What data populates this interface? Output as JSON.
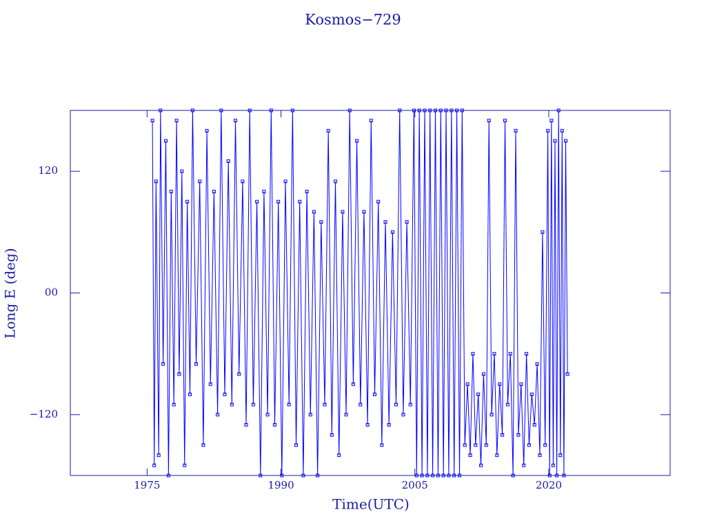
{
  "chart_data": {
    "type": "line",
    "title": "Kosmos−729",
    "x_label": "Time(UTC)",
    "y_label": "Long E (deg)",
    "xlim": [
      1966.4,
      2033.6
    ],
    "ylim": [
      -180,
      180
    ],
    "xticks": [
      1975,
      1990,
      2005,
      2020
    ],
    "yticks": [
      {
        "value": -120,
        "label": "−120"
      },
      {
        "value": 0,
        "label": "00"
      },
      120
    ],
    "series": [
      {
        "color": "#0000ff",
        "x": [
          1975.6,
          1975.8,
          1976.0,
          1976.3,
          1976.5,
          1976.8,
          1977.1,
          1977.4,
          1977.7,
          1978.0,
          1978.3,
          1978.6,
          1978.9,
          1979.2,
          1979.5,
          1979.8,
          1980.1,
          1980.5,
          1980.9,
          1981.3,
          1981.7,
          1982.1,
          1982.5,
          1982.9,
          1983.3,
          1983.7,
          1984.1,
          1984.5,
          1984.9,
          1985.3,
          1985.7,
          1986.1,
          1986.5,
          1986.9,
          1987.3,
          1987.7,
          1988.1,
          1988.5,
          1988.9,
          1989.3,
          1989.7,
          1990.1,
          1990.5,
          1990.9,
          1991.3,
          1991.7,
          1992.1,
          1992.5,
          1992.9,
          1993.3,
          1993.7,
          1994.1,
          1994.5,
          1994.9,
          1995.3,
          1995.7,
          1996.1,
          1996.5,
          1996.9,
          1997.3,
          1997.7,
          1998.1,
          1998.5,
          1998.9,
          1999.3,
          1999.7,
          2000.1,
          2000.5,
          2000.9,
          2001.3,
          2001.7,
          2002.1,
          2002.5,
          2002.9,
          2003.3,
          2003.7,
          2004.1,
          2004.5,
          2004.9,
          2005.2,
          2005.5,
          2005.8,
          2006.1,
          2006.4,
          2006.7,
          2007.0,
          2007.3,
          2007.6,
          2007.9,
          2008.2,
          2008.5,
          2008.8,
          2009.1,
          2009.4,
          2009.7,
          2010.0,
          2010.3,
          2010.6,
          2010.9,
          2011.2,
          2011.5,
          2011.8,
          2012.1,
          2012.4,
          2012.7,
          2013.0,
          2013.3,
          2013.6,
          2013.9,
          2014.2,
          2014.5,
          2014.8,
          2015.1,
          2015.4,
          2015.7,
          2016.0,
          2016.3,
          2016.6,
          2016.9,
          2017.2,
          2017.5,
          2017.8,
          2018.1,
          2018.4,
          2018.7,
          2019.0,
          2019.3,
          2019.6,
          2019.9,
          2020.1,
          2020.3,
          2020.5,
          2020.7,
          2020.9,
          2021.1,
          2021.3,
          2021.5,
          2021.7,
          2021.9,
          2022.1
        ],
        "values": [
          170,
          -170,
          110,
          -160,
          180,
          -70,
          150,
          -180,
          100,
          -110,
          170,
          -80,
          120,
          -170,
          90,
          -100,
          180,
          -70,
          110,
          -150,
          160,
          -90,
          100,
          -120,
          180,
          -100,
          130,
          -110,
          170,
          -80,
          110,
          -130,
          180,
          -110,
          90,
          -180,
          100,
          -120,
          180,
          -130,
          90,
          -180,
          110,
          -110,
          180,
          -150,
          90,
          -180,
          100,
          -120,
          80,
          -180,
          70,
          -110,
          160,
          -140,
          110,
          -160,
          80,
          -120,
          180,
          -90,
          150,
          -110,
          80,
          -130,
          170,
          -100,
          90,
          -150,
          70,
          -130,
          60,
          -110,
          180,
          -120,
          70,
          -110,
          180,
          -180,
          180,
          -180,
          180,
          -180,
          180,
          -180,
          180,
          -180,
          180,
          -180,
          180,
          -180,
          180,
          -180,
          180,
          -180,
          180,
          -150,
          -90,
          -160,
          -60,
          -150,
          -100,
          -170,
          -80,
          -150,
          170,
          -120,
          -60,
          -160,
          -90,
          -140,
          170,
          -110,
          -60,
          -180,
          160,
          -140,
          -90,
          -170,
          -60,
          -150,
          -100,
          -130,
          -70,
          -160,
          60,
          -150,
          160,
          -180,
          170,
          -170,
          150,
          -180,
          180,
          -160,
          160,
          -180,
          150,
          -80
        ]
      }
    ]
  }
}
